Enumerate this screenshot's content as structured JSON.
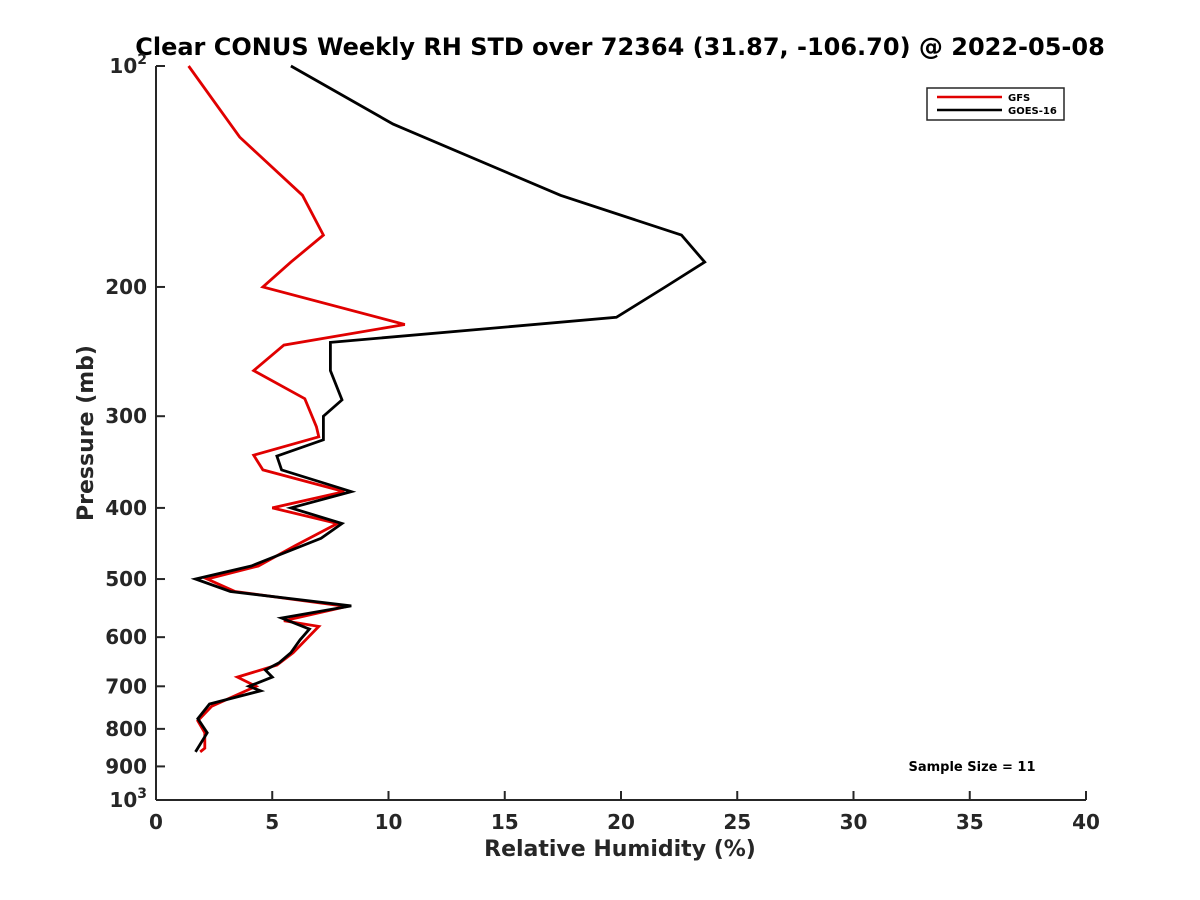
{
  "chart_data": {
    "type": "line",
    "title": "Clear CONUS Weekly RH STD over 72364 (31.87, -106.70) @ 2022-05-08",
    "xlabel": "Relative Humidity (%)",
    "ylabel": "Pressure (mb)",
    "xlim": [
      0,
      40
    ],
    "ylim": [
      100,
      1000
    ],
    "y_scale": "log",
    "y_reversed": true,
    "grid": false,
    "legend_position": "top-right",
    "x_ticks": [
      0,
      5,
      10,
      15,
      20,
      25,
      30,
      35,
      40
    ],
    "x_tick_labels": [
      "0",
      "5",
      "10",
      "15",
      "20",
      "25",
      "30",
      "35",
      "40"
    ],
    "y_ticks": [
      100,
      200,
      300,
      400,
      500,
      600,
      700,
      800,
      900,
      1000
    ],
    "y_tick_labels": [
      {
        "base": "10",
        "sup": "2"
      },
      {
        "base": "200",
        "sup": ""
      },
      {
        "base": "300",
        "sup": ""
      },
      {
        "base": "400",
        "sup": ""
      },
      {
        "base": "500",
        "sup": ""
      },
      {
        "base": "600",
        "sup": ""
      },
      {
        "base": "700",
        "sup": ""
      },
      {
        "base": "800",
        "sup": ""
      },
      {
        "base": "900",
        "sup": ""
      },
      {
        "base": "10",
        "sup": "3"
      }
    ],
    "annotation": "Sample Size = 11",
    "series": [
      {
        "name": "GFS",
        "color": "#e00000",
        "points": [
          [
            1.4,
            100
          ],
          [
            3.6,
            125
          ],
          [
            6.3,
            150
          ],
          [
            7.2,
            170
          ],
          [
            5.8,
            185
          ],
          [
            4.6,
            200
          ],
          [
            10.7,
            225
          ],
          [
            5.5,
            240
          ],
          [
            4.2,
            260
          ],
          [
            6.4,
            284
          ],
          [
            6.9,
            310
          ],
          [
            7.0,
            320
          ],
          [
            4.2,
            339
          ],
          [
            4.6,
            355
          ],
          [
            8.1,
            380
          ],
          [
            5.0,
            400
          ],
          [
            7.8,
            420
          ],
          [
            6.0,
            450
          ],
          [
            4.4,
            480
          ],
          [
            2.2,
            500
          ],
          [
            3.4,
            520
          ],
          [
            8.2,
            545
          ],
          [
            5.5,
            570
          ],
          [
            7.0,
            580
          ],
          [
            5.9,
            630
          ],
          [
            5.2,
            655
          ],
          [
            3.5,
            680
          ],
          [
            4.3,
            700
          ],
          [
            2.4,
            745
          ],
          [
            1.8,
            780
          ],
          [
            2.1,
            810
          ],
          [
            2.1,
            850
          ],
          [
            1.9,
            860
          ]
        ]
      },
      {
        "name": "GOES-16",
        "color": "#000000",
        "points": [
          [
            5.8,
            100
          ],
          [
            10.2,
            120
          ],
          [
            17.4,
            150
          ],
          [
            22.6,
            170
          ],
          [
            23.6,
            185
          ],
          [
            21.9,
            200
          ],
          [
            19.8,
            220
          ],
          [
            7.5,
            238
          ],
          [
            7.5,
            260
          ],
          [
            8.0,
            285
          ],
          [
            7.2,
            300
          ],
          [
            7.2,
            323
          ],
          [
            5.2,
            340
          ],
          [
            5.4,
            355
          ],
          [
            8.4,
            380
          ],
          [
            5.8,
            400
          ],
          [
            8.0,
            420
          ],
          [
            7.1,
            440
          ],
          [
            4.1,
            480
          ],
          [
            1.7,
            500
          ],
          [
            3.2,
            520
          ],
          [
            8.4,
            544
          ],
          [
            5.4,
            565
          ],
          [
            6.6,
            585
          ],
          [
            6.2,
            605
          ],
          [
            5.8,
            630
          ],
          [
            5.3,
            650
          ],
          [
            4.7,
            665
          ],
          [
            5.0,
            680
          ],
          [
            4.0,
            700
          ],
          [
            4.5,
            710
          ],
          [
            2.3,
            740
          ],
          [
            1.8,
            775
          ],
          [
            2.2,
            810
          ],
          [
            1.7,
            860
          ]
        ]
      }
    ]
  }
}
